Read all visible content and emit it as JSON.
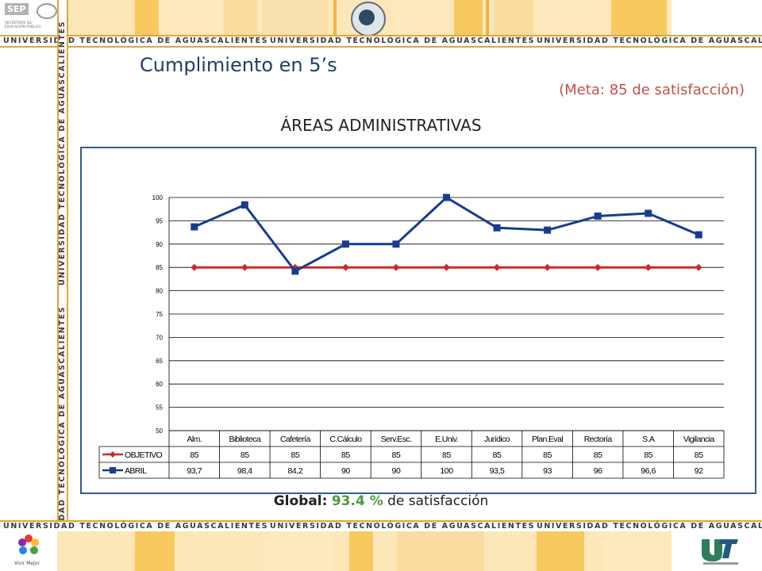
{
  "header": {
    "agency_short": "SEP",
    "agency_line1": "SECRETARÍA DE",
    "agency_line2": "EDUCACIÓN PÚBLICA",
    "university_repeat": "UNIVERSIDAD TECNOLÓGICA DE AGUASCALIENTES",
    "side_repeat": "UNIVERSIDAD TECNOLÓGICA DE AGUASCALIENTES"
  },
  "slide": {
    "title": "Cumplimiento en 5’s",
    "goal": "(Meta: 85 de satisfacción)",
    "subtitle": "ÁREAS ADMINISTRATIVAS",
    "global_label": "Global:",
    "global_value": "93.4 %",
    "global_suffix": "de satisfacción"
  },
  "footer": {
    "left_logo_label": "Vivir Mejor"
  },
  "colors": {
    "objective": "#d1282b",
    "april": "#163d8e",
    "title": "#1f3f67",
    "goal": "#c0504d",
    "global_value": "#4f9a3e",
    "banner": "#fbe7b8",
    "frame": "#2e5f93"
  },
  "chart_data": {
    "type": "line",
    "categories": [
      "Alm.",
      "Biblioteca",
      "Cafetería",
      "C.Cálculo",
      "Serv.Esc.",
      "E.Univ.",
      "Jurídico",
      "Plan.Eval",
      "Rectoría",
      "S.A",
      "Vigilancia"
    ],
    "series": [
      {
        "name": "OBJETIVO",
        "values": [
          85,
          85,
          85,
          85,
          85,
          85,
          85,
          85,
          85,
          85,
          85
        ],
        "labels": [
          "85",
          "85",
          "85",
          "85",
          "85",
          "85",
          "85",
          "85",
          "85",
          "85",
          "85"
        ],
        "marker": "diamond",
        "color": "#d1282b"
      },
      {
        "name": "ABRIL",
        "values": [
          93.7,
          98.4,
          84.2,
          90,
          90,
          100,
          93.5,
          93,
          96,
          96.6,
          92
        ],
        "labels": [
          "93,7",
          "98,4",
          "84,2",
          "90",
          "90",
          "100",
          "93,5",
          "93",
          "96",
          "96,6",
          "92"
        ],
        "marker": "square",
        "color": "#163d8e"
      }
    ],
    "yticks": [
      "50",
      "55",
      "60",
      "65",
      "70",
      "75",
      "80",
      "85",
      "90",
      "95",
      "100"
    ],
    "ylim": [
      50,
      100
    ],
    "grid": true,
    "legend": "data-table"
  }
}
